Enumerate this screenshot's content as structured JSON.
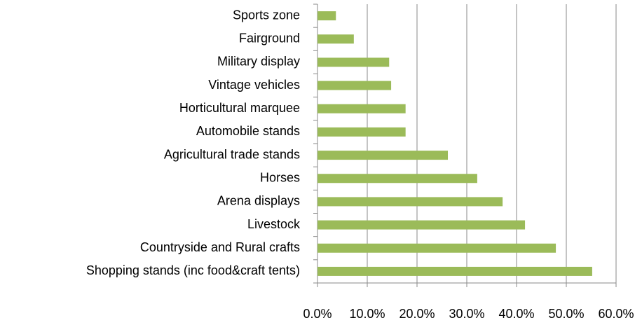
{
  "chart_data": {
    "type": "bar",
    "orientation": "horizontal",
    "categories": [
      "Sports zone",
      "Fairground",
      "Military display",
      "Vintage vehicles",
      "Horticultural marquee",
      "Automobile stands",
      "Agricultural trade stands",
      "Horses",
      "Arena displays",
      "Livestock",
      "Countryside and Rural crafts",
      "Shopping stands (inc food&craft tents)"
    ],
    "values": [
      3.7,
      7.3,
      14.4,
      14.8,
      17.7,
      17.7,
      26.2,
      32.1,
      37.2,
      41.7,
      47.9,
      55.2
    ],
    "color": "#9bbb59",
    "xlim": [
      0,
      60
    ],
    "xticks": [
      {
        "value": 0,
        "label": "0.0%"
      },
      {
        "value": 10,
        "label": "10.0%"
      },
      {
        "value": 20,
        "label": "20.0%"
      },
      {
        "value": 30,
        "label": "30.0%"
      },
      {
        "value": 40,
        "label": "40.0%"
      },
      {
        "value": 50,
        "label": "50.0%"
      },
      {
        "value": 60,
        "label": "60.0%"
      }
    ],
    "grid": true
  }
}
